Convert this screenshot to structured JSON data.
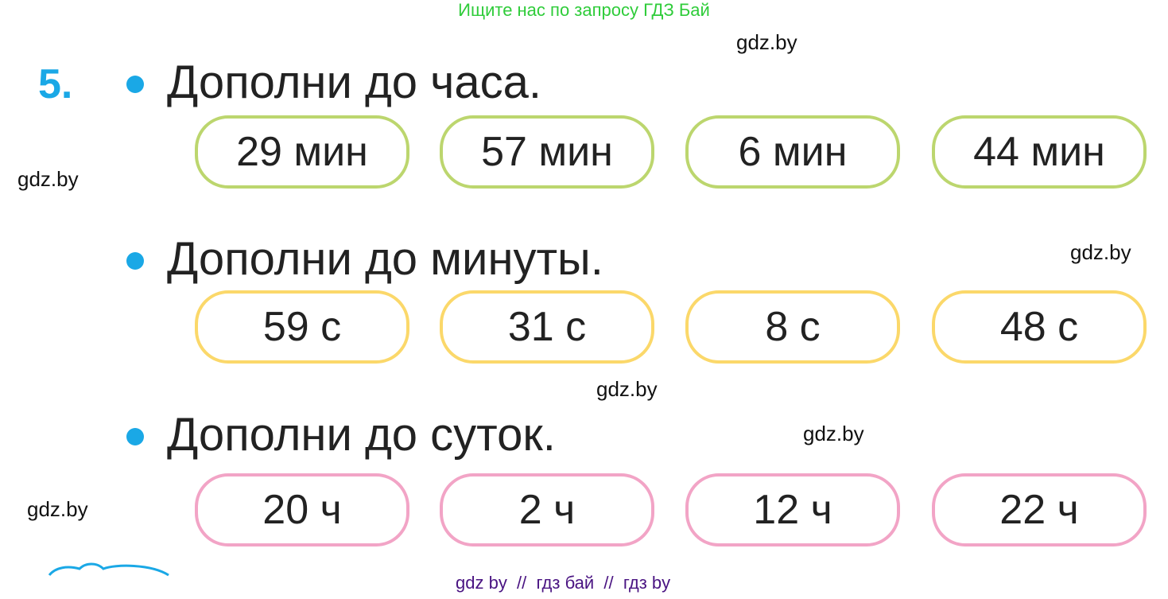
{
  "top_note": "Ищите нас по запросу ГДЗ Бай",
  "exercise_number": "5.",
  "watermark": "gdz.by",
  "sections": [
    {
      "title": "Дополни до часа.",
      "color": "#bcd66e",
      "items": [
        "29 мин",
        "57 мин",
        "6  мин",
        "44 мин"
      ]
    },
    {
      "title": "Дополни до минуты.",
      "color": "#fbd86a",
      "items": [
        "59 с",
        "31 с",
        "8 с",
        "48 с"
      ]
    },
    {
      "title": "Дополни до суток.",
      "color": "#f2a4c6",
      "items": [
        "20 ч",
        "2 ч",
        "12 ч",
        "22 ч"
      ]
    }
  ],
  "footer": "gdz by  //  гдз бай  //  гдз by",
  "colors": {
    "accent": "#1aa8e6",
    "top_note": "#2fcc3a",
    "footer": "#4a1482"
  }
}
